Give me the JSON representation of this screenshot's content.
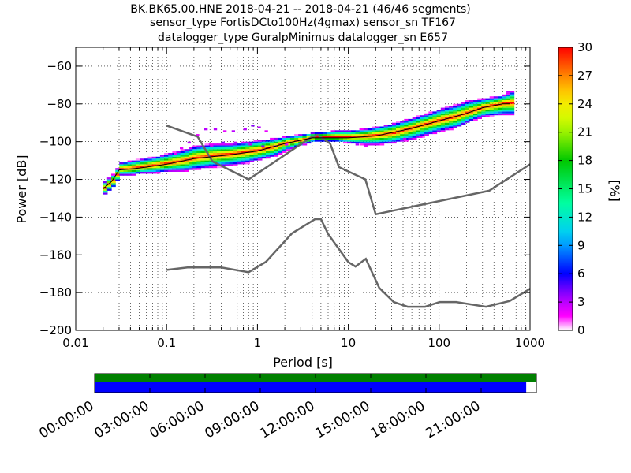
{
  "title_lines": [
    "BK.BK65.00.HNE   2018-04-21 -- 2018-04-21  (46/46 segments)",
    "sensor_type FortisDCto100Hz(4gmax) sensor_sn TF167",
    "datalogger_type GuralpMinimus datalogger_sn E657"
  ],
  "chart_data": {
    "type": "heatmap",
    "xlabel": "Period [s]",
    "ylabel": "Power [dB]",
    "x_scale": "log",
    "xlim": [
      0.01,
      1000
    ],
    "ylim": [
      -200,
      -50
    ],
    "x_ticks": [
      {
        "v": 0.01,
        "label": "0.01"
      },
      {
        "v": 0.1,
        "label": "0.1"
      },
      {
        "v": 1,
        "label": "1"
      },
      {
        "v": 10,
        "label": "10"
      },
      {
        "v": 100,
        "label": "100"
      },
      {
        "v": 1000,
        "label": "1000"
      }
    ],
    "y_ticks": [
      {
        "v": -200,
        "label": "−200"
      },
      {
        "v": -180,
        "label": "−180"
      },
      {
        "v": -160,
        "label": "−160"
      },
      {
        "v": -140,
        "label": "−140"
      },
      {
        "v": -120,
        "label": "−120"
      },
      {
        "v": -100,
        "label": "−100"
      },
      {
        "v": -80,
        "label": "−80"
      },
      {
        "v": -60,
        "label": "−60"
      }
    ],
    "grid": "dotted, x major and minor",
    "colorbar": {
      "label": "[%]",
      "range": [
        0,
        30
      ],
      "ticks": [
        {
          "v": 0,
          "label": "0"
        },
        {
          "v": 3,
          "label": "3"
        },
        {
          "v": 6,
          "label": "6"
        },
        {
          "v": 9,
          "label": "9"
        },
        {
          "v": 12,
          "label": "12"
        },
        {
          "v": 15,
          "label": "15"
        },
        {
          "v": 18,
          "label": "18"
        },
        {
          "v": 21,
          "label": "21"
        },
        {
          "v": 24,
          "label": "24"
        },
        {
          "v": 27,
          "label": "27"
        },
        {
          "v": 30,
          "label": "30"
        }
      ]
    },
    "nhnm": [
      [
        0.1,
        -91.5
      ],
      [
        0.22,
        -97.4
      ],
      [
        0.32,
        -110.5
      ],
      [
        0.8,
        -120
      ],
      [
        3.8,
        -98
      ],
      [
        4.6,
        -96.5
      ],
      [
        6.3,
        -101
      ],
      [
        7.9,
        -113.5
      ],
      [
        15.4,
        -120
      ],
      [
        20,
        -138.5
      ],
      [
        354.8,
        -126
      ],
      [
        1000,
        -112
      ]
    ],
    "nlnm": [
      [
        0.1,
        -168
      ],
      [
        0.17,
        -166.7
      ],
      [
        0.4,
        -166.7
      ],
      [
        0.8,
        -169.2
      ],
      [
        1.24,
        -163.7
      ],
      [
        2.4,
        -148.6
      ],
      [
        4.3,
        -141.1
      ],
      [
        5,
        -141.1
      ],
      [
        6,
        -149
      ],
      [
        10,
        -163.8
      ],
      [
        12,
        -166.2
      ],
      [
        15.6,
        -162.1
      ],
      [
        21.9,
        -177.5
      ],
      [
        31.6,
        -185
      ],
      [
        45,
        -187.5
      ],
      [
        70,
        -187.5
      ],
      [
        101,
        -185
      ],
      [
        154,
        -185
      ],
      [
        328,
        -187.5
      ],
      [
        600,
        -184.4
      ],
      [
        1000,
        -178
      ]
    ],
    "mode_curve": [
      [
        0.02,
        -125
      ],
      [
        0.025,
        -121
      ],
      [
        0.03,
        -115
      ],
      [
        0.05,
        -114
      ],
      [
        0.1,
        -112
      ],
      [
        0.2,
        -109
      ],
      [
        0.5,
        -107
      ],
      [
        1,
        -105
      ],
      [
        2,
        -101
      ],
      [
        4,
        -98
      ],
      [
        10,
        -98
      ],
      [
        20,
        -97
      ],
      [
        50,
        -93
      ],
      [
        100,
        -89
      ],
      [
        200,
        -85
      ],
      [
        300,
        -82
      ],
      [
        500,
        -80
      ],
      [
        600,
        -80
      ]
    ],
    "percentile_bands": {
      "periods": [
        0.02,
        0.025,
        0.03,
        0.04,
        0.05,
        0.07,
        0.1,
        0.15,
        0.2,
        0.3,
        0.5,
        0.7,
        1,
        1.5,
        2,
        3,
        4,
        5,
        7,
        10,
        15,
        20,
        30,
        50,
        70,
        100,
        150,
        200,
        300,
        500,
        600
      ],
      "peak": [
        -125,
        -121,
        -115,
        -114.5,
        -114,
        -113,
        -112,
        -110.5,
        -109,
        -108,
        -107,
        -106,
        -105,
        -103,
        -101,
        -99.5,
        -98,
        -98,
        -98,
        -98,
        -97.5,
        -97,
        -96,
        -93,
        -91,
        -89,
        -87,
        -85,
        -82,
        -80,
        -80
      ],
      "low": [
        -127,
        -123,
        -117,
        -117,
        -116,
        -116,
        -115,
        -115,
        -114,
        -113,
        -112,
        -111,
        -109,
        -107,
        -104,
        -101,
        -99,
        -99,
        -99,
        -100,
        -101,
        -101,
        -100,
        -98,
        -96,
        -94,
        -92,
        -89,
        -86,
        -85,
        -85
      ],
      "high": [
        -123,
        -119,
        -113,
        -112,
        -111,
        -110,
        -108,
        -106,
        -104,
        -103,
        -103,
        -102,
        -101,
        -100,
        -99,
        -98,
        -97,
        -97,
        -96,
        -96,
        -95,
        -94,
        -92,
        -89,
        -87,
        -84,
        -82,
        -80,
        -79,
        -77,
        -75
      ]
    },
    "outlier_cells": [
      {
        "p": 0.12,
        "db": -107,
        "pct": 2
      },
      {
        "p": 0.14,
        "db": -104,
        "pct": 2
      },
      {
        "p": 0.17,
        "db": -101,
        "pct": 3
      },
      {
        "p": 0.21,
        "db": -97,
        "pct": 2
      },
      {
        "p": 0.26,
        "db": -94,
        "pct": 3
      },
      {
        "p": 0.33,
        "db": -94,
        "pct": 3
      },
      {
        "p": 0.42,
        "db": -95,
        "pct": 2
      },
      {
        "p": 0.52,
        "db": -95,
        "pct": 3
      },
      {
        "p": 0.7,
        "db": -94,
        "pct": 3
      },
      {
        "p": 0.85,
        "db": -92,
        "pct": 4
      },
      {
        "p": 1.0,
        "db": -93,
        "pct": 3
      },
      {
        "p": 1.2,
        "db": -95,
        "pct": 2
      },
      {
        "p": 0.3,
        "db": -103,
        "pct": 3
      },
      {
        "p": 0.4,
        "db": -101,
        "pct": 4
      },
      {
        "p": 0.55,
        "db": -101,
        "pct": 3
      },
      {
        "p": 0.8,
        "db": -102,
        "pct": 3
      },
      {
        "p": 1.1,
        "db": -103,
        "pct": 4
      },
      {
        "p": 1.5,
        "db": -103,
        "pct": 3
      },
      {
        "p": 2.0,
        "db": -102,
        "pct": 2
      },
      {
        "p": 12,
        "db": -102,
        "pct": 3
      },
      {
        "p": 15,
        "db": -103,
        "pct": 2
      },
      {
        "p": 40,
        "db": -99,
        "pct": 3
      },
      {
        "p": 60,
        "db": -98,
        "pct": 2
      },
      {
        "p": 550,
        "db": -74,
        "pct": 3
      }
    ],
    "timeline": {
      "bars": [
        {
          "name": "data_availability",
          "color": "#008000",
          "start_fraction": 0.0,
          "end_fraction": 1.0
        },
        {
          "name": "psd_coverage",
          "color": "#0000ff",
          "start_fraction": 0.0,
          "end_fraction": 0.977
        }
      ],
      "labels": [
        "00:00:00",
        "03:00:00",
        "06:00:00",
        "09:00:00",
        "12:00:00",
        "15:00:00",
        "18:00:00",
        "21:00:00"
      ]
    }
  }
}
